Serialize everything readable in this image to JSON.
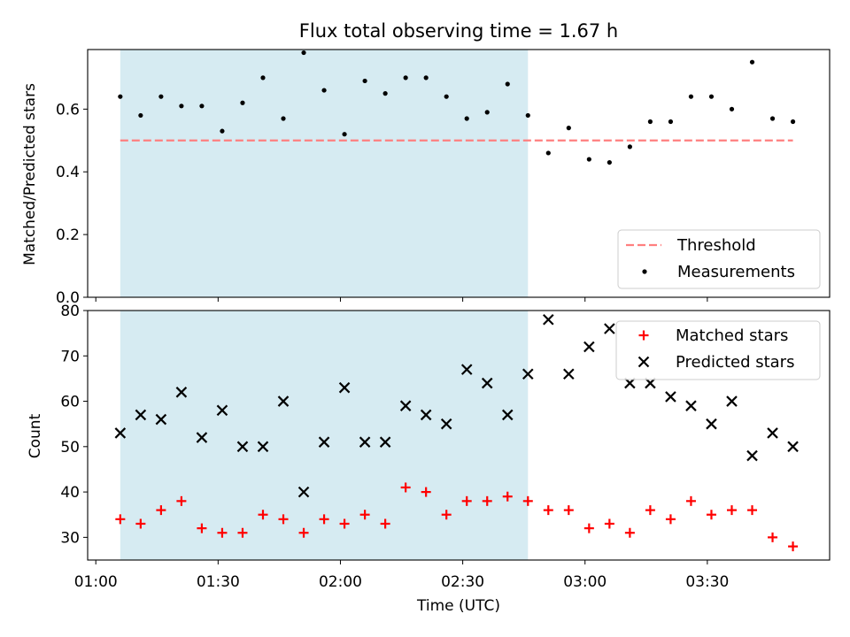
{
  "figure": {
    "title": "Flux total observing time = 1.67 h"
  },
  "chart_data": [
    {
      "type": "scatter",
      "ylabel": "Matched/Predicted stars",
      "xlim": [
        "00:58",
        "04:00"
      ],
      "ylim": [
        0,
        0.79
      ],
      "yticks": [
        "0.0",
        "0.2",
        "0.4",
        "0.6"
      ],
      "highlight_span": [
        "01:06",
        "02:46"
      ],
      "threshold": {
        "name": "Threshold",
        "value": 0.5,
        "x_range": [
          "01:06",
          "03:51"
        ],
        "color": "#ff7f7f"
      },
      "series": [
        {
          "name": "Measurements",
          "color": "#000000",
          "x": [
            "01:06",
            "01:11",
            "01:16",
            "01:21",
            "01:26",
            "01:31",
            "01:36",
            "01:41",
            "01:46",
            "01:51",
            "01:56",
            "02:01",
            "02:06",
            "02:11",
            "02:16",
            "02:21",
            "02:26",
            "02:31",
            "02:36",
            "02:41",
            "02:46",
            "02:51",
            "02:56",
            "03:01",
            "03:06",
            "03:11",
            "03:16",
            "03:21",
            "03:26",
            "03:31",
            "03:36",
            "03:41",
            "03:46",
            "03:51"
          ],
          "values": [
            0.64,
            0.58,
            0.64,
            0.61,
            0.61,
            0.53,
            0.62,
            0.7,
            0.57,
            0.78,
            0.66,
            0.52,
            0.69,
            0.65,
            0.7,
            0.7,
            0.64,
            0.57,
            0.59,
            0.68,
            0.58,
            0.46,
            0.54,
            0.44,
            0.43,
            0.48,
            0.56,
            0.56,
            0.64,
            0.64,
            0.6,
            0.75,
            0.57,
            0.56
          ]
        }
      ]
    },
    {
      "type": "scatter",
      "xlabel": "Time (UTC)",
      "ylabel": "Count",
      "xlim": [
        "00:58",
        "04:00"
      ],
      "ylim": [
        25,
        80
      ],
      "xticks": [
        "01:00",
        "01:30",
        "02:00",
        "02:30",
        "03:00",
        "03:30"
      ],
      "yticks": [
        30,
        40,
        50,
        60,
        70,
        80
      ],
      "highlight_span": [
        "01:06",
        "02:46"
      ],
      "series": [
        {
          "name": "Matched stars",
          "color": "#ff0000",
          "marker": "+",
          "x": [
            "01:06",
            "01:11",
            "01:16",
            "01:21",
            "01:26",
            "01:31",
            "01:36",
            "01:41",
            "01:46",
            "01:51",
            "01:56",
            "02:01",
            "02:06",
            "02:11",
            "02:16",
            "02:21",
            "02:26",
            "02:31",
            "02:36",
            "02:41",
            "02:46",
            "02:51",
            "02:56",
            "03:01",
            "03:06",
            "03:11",
            "03:16",
            "03:21",
            "03:26",
            "03:31",
            "03:36",
            "03:41",
            "03:46",
            "03:51"
          ],
          "values": [
            34,
            33,
            36,
            38,
            32,
            31,
            31,
            35,
            34,
            31,
            34,
            33,
            35,
            33,
            41,
            40,
            35,
            38,
            38,
            39,
            38,
            36,
            36,
            32,
            33,
            31,
            36,
            34,
            38,
            35,
            36,
            36,
            30,
            28
          ]
        },
        {
          "name": "Predicted stars",
          "color": "#000000",
          "marker": "x",
          "x": [
            "01:06",
            "01:11",
            "01:16",
            "01:21",
            "01:26",
            "01:31",
            "01:36",
            "01:41",
            "01:46",
            "01:51",
            "01:56",
            "02:01",
            "02:06",
            "02:11",
            "02:16",
            "02:21",
            "02:26",
            "02:31",
            "02:36",
            "02:41",
            "02:46",
            "02:51",
            "02:56",
            "03:01",
            "03:06",
            "03:11",
            "03:16",
            "03:21",
            "03:26",
            "03:31",
            "03:36",
            "03:41",
            "03:46",
            "03:51"
          ],
          "values": [
            53,
            57,
            56,
            62,
            52,
            58,
            50,
            50,
            60,
            40,
            51,
            63,
            51,
            51,
            59,
            57,
            55,
            67,
            64,
            57,
            66,
            78,
            66,
            72,
            76,
            64,
            64,
            61,
            59,
            55,
            60,
            48,
            53,
            50
          ]
        }
      ]
    }
  ]
}
